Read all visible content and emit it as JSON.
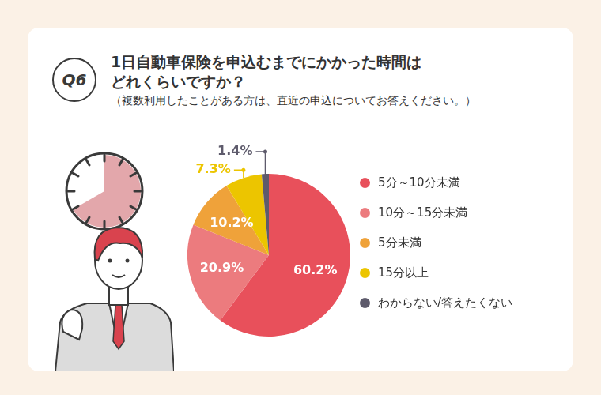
{
  "badge": "Q6",
  "title": "1日自動車保険を申込むまでにかかった時間はどれくらいですか？",
  "subtitle": "（複数利用したことがある方は、直近の申込についてお答えください。）",
  "chart_data": {
    "type": "pie",
    "categories": [
      "5分～10分未満",
      "10分～15分未満",
      "5分未満",
      "15分以上",
      "わからない/答えたくない"
    ],
    "values": [
      60.2,
      20.9,
      10.2,
      7.3,
      1.4
    ],
    "value_labels": [
      "60.2%",
      "20.9%",
      "10.2%",
      "7.3%",
      "1.4%"
    ],
    "colors": [
      "#e8505b",
      "#ec7b7e",
      "#efa23a",
      "#ecc500",
      "#5e5b6c"
    ],
    "data_labels": true,
    "legend": "right"
  }
}
